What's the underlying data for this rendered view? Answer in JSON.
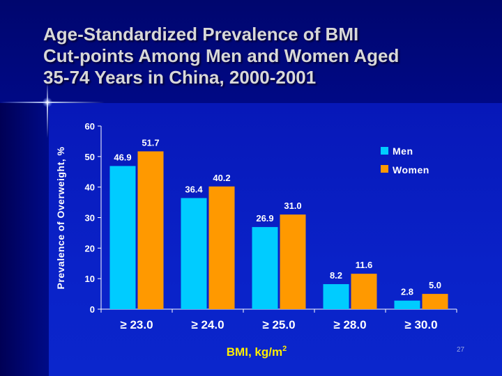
{
  "slide": {
    "title_lines": [
      "Age-Standardized Prevalence of BMI",
      "Cut-points Among Men and Women Aged",
      "35-74 Years in China, 2000-2001"
    ],
    "slide_number": "27"
  },
  "colors": {
    "men": "#00ccff",
    "women": "#ff9900",
    "axis_title": "#ffee00",
    "text": "#ffffff"
  },
  "chart_data": {
    "type": "bar",
    "title": "",
    "ylabel": "Prevalence of Overweight, %",
    "xlabel": "BMI, kg/m",
    "xlabel_superscript": "2",
    "ylim": [
      0,
      60
    ],
    "yticks": [
      0,
      10,
      20,
      30,
      40,
      50,
      60
    ],
    "grid": false,
    "legend_position": "top-right",
    "categories": [
      "≥ 23.0",
      "≥ 24.0",
      "≥ 25.0",
      "≥ 28.0",
      "≥ 30.0"
    ],
    "series": [
      {
        "name": "Men",
        "color": "#00ccff",
        "values": [
          46.9,
          36.4,
          26.9,
          8.2,
          2.8
        ],
        "labels": [
          "46.9",
          "36.4",
          "26.9",
          "8.2",
          "2.8"
        ]
      },
      {
        "name": "Women",
        "color": "#ff9900",
        "values": [
          51.7,
          40.2,
          31.0,
          11.6,
          5.0
        ],
        "labels": [
          "51.7",
          "40.2",
          "31.0",
          "11.6",
          "5.0"
        ]
      }
    ]
  }
}
